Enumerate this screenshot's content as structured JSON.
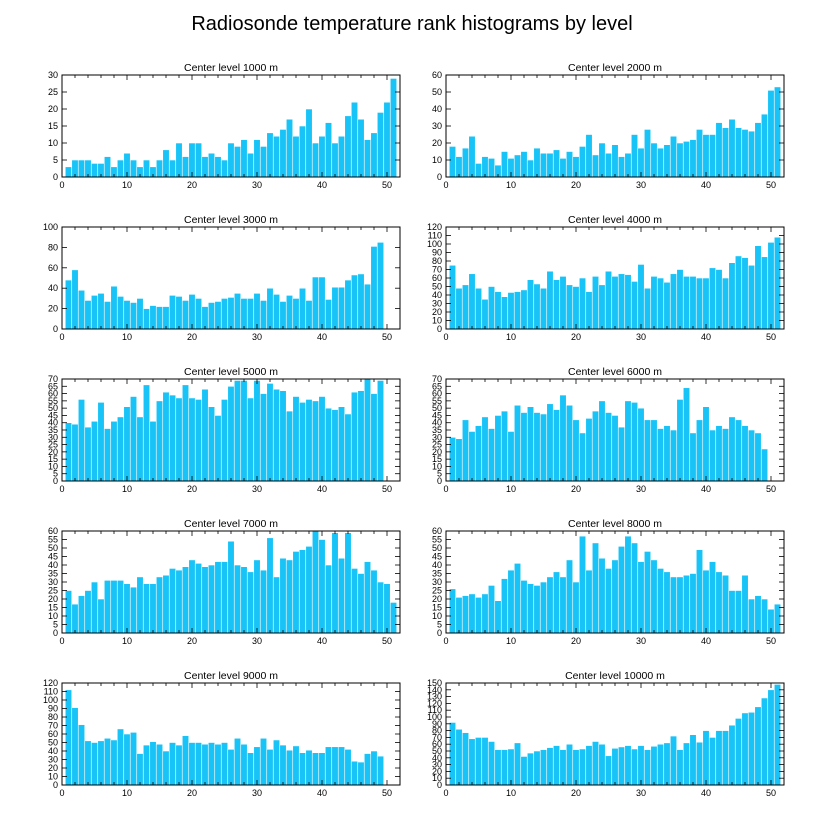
{
  "title": "Radiosonde temperature rank histograms by level",
  "colors": {
    "bar": "#17c3f7",
    "bar_edge": "#ffffff",
    "axis": "#000000"
  },
  "chart_data": [
    {
      "type": "bar",
      "title": "Center level 1000 m",
      "x": [
        1,
        2,
        3,
        4,
        5,
        6,
        7,
        8,
        9,
        10,
        11,
        12,
        13,
        14,
        15,
        16,
        17,
        18,
        19,
        20,
        21,
        22,
        23,
        24,
        25,
        26,
        27,
        28,
        29,
        30,
        31,
        32,
        33,
        34,
        35,
        36,
        37,
        38,
        39,
        40,
        41,
        42,
        43,
        44,
        45,
        46,
        47,
        48,
        49,
        50,
        51
      ],
      "values": [
        3,
        5,
        5,
        5,
        4,
        4,
        6,
        3,
        5,
        7,
        5,
        3,
        5,
        3,
        5,
        8,
        5,
        10,
        6,
        10,
        10,
        6,
        7,
        6,
        5,
        10,
        9,
        11,
        7,
        11,
        9,
        13,
        12,
        14,
        17,
        12,
        15,
        20,
        10,
        12,
        16,
        10,
        12,
        18,
        22,
        17,
        11,
        13,
        19,
        22,
        29
      ],
      "xlim": [
        0,
        52
      ],
      "ylim": [
        0,
        30
      ],
      "xticks": [
        0,
        10,
        20,
        30,
        40,
        50
      ],
      "yticks": [
        0,
        5,
        10,
        15,
        20,
        25,
        30
      ]
    },
    {
      "type": "bar",
      "title": "Center level 2000 m",
      "x": [
        1,
        2,
        3,
        4,
        5,
        6,
        7,
        8,
        9,
        10,
        11,
        12,
        13,
        14,
        15,
        16,
        17,
        18,
        19,
        20,
        21,
        22,
        23,
        24,
        25,
        26,
        27,
        28,
        29,
        30,
        31,
        32,
        33,
        34,
        35,
        36,
        37,
        38,
        39,
        40,
        41,
        42,
        43,
        44,
        45,
        46,
        47,
        48,
        49,
        50,
        51
      ],
      "values": [
        18,
        12,
        17,
        24,
        8,
        12,
        11,
        7,
        15,
        11,
        13,
        15,
        10,
        17,
        14,
        14,
        16,
        11,
        15,
        12,
        18,
        25,
        13,
        20,
        14,
        19,
        12,
        14,
        25,
        17,
        28,
        20,
        17,
        19,
        24,
        20,
        21,
        22,
        28,
        25,
        25,
        32,
        29,
        34,
        29,
        28,
        27,
        32,
        37,
        51,
        53
      ],
      "xlim": [
        0,
        52
      ],
      "ylim": [
        0,
        60
      ],
      "xticks": [
        0,
        10,
        20,
        30,
        40,
        50
      ],
      "yticks": [
        0,
        10,
        20,
        30,
        40,
        50,
        60
      ]
    },
    {
      "type": "bar",
      "title": "Center level 3000 m",
      "x": [
        1,
        2,
        3,
        4,
        5,
        6,
        7,
        8,
        9,
        10,
        11,
        12,
        13,
        14,
        15,
        16,
        17,
        18,
        19,
        20,
        21,
        22,
        23,
        24,
        25,
        26,
        27,
        28,
        29,
        30,
        31,
        32,
        33,
        34,
        35,
        36,
        37,
        38,
        39,
        40,
        41,
        42,
        43,
        44,
        45,
        46,
        47,
        48,
        49,
        50,
        51
      ],
      "values": [
        48,
        58,
        38,
        28,
        33,
        35,
        27,
        42,
        32,
        28,
        26,
        30,
        20,
        23,
        22,
        22,
        33,
        32,
        28,
        34,
        30,
        22,
        26,
        27,
        30,
        31,
        35,
        30,
        30,
        35,
        28,
        40,
        34,
        27,
        33,
        30,
        40,
        28,
        51,
        51,
        29,
        41,
        41,
        48,
        53,
        54,
        44,
        81,
        85,
        null,
        null
      ],
      "xlim": [
        0,
        52
      ],
      "ylim": [
        0,
        100
      ],
      "xticks": [
        0,
        10,
        20,
        30,
        40,
        50
      ],
      "yticks": [
        0,
        20,
        40,
        60,
        80,
        100
      ]
    },
    {
      "type": "bar",
      "title": "Center level 4000 m",
      "x": [
        1,
        2,
        3,
        4,
        5,
        6,
        7,
        8,
        9,
        10,
        11,
        12,
        13,
        14,
        15,
        16,
        17,
        18,
        19,
        20,
        21,
        22,
        23,
        24,
        25,
        26,
        27,
        28,
        29,
        30,
        31,
        32,
        33,
        34,
        35,
        36,
        37,
        38,
        39,
        40,
        41,
        42,
        43,
        44,
        45,
        46,
        47,
        48,
        49,
        50,
        51
      ],
      "values": [
        75,
        48,
        52,
        65,
        48,
        35,
        50,
        44,
        38,
        43,
        44,
        46,
        58,
        53,
        48,
        68,
        58,
        62,
        52,
        50,
        60,
        44,
        62,
        52,
        68,
        62,
        65,
        64,
        56,
        76,
        48,
        62,
        60,
        55,
        65,
        70,
        62,
        62,
        60,
        60,
        72,
        70,
        60,
        78,
        86,
        84,
        75,
        98,
        85,
        102,
        108
      ],
      "xlim": [
        0,
        52
      ],
      "ylim": [
        0,
        120
      ],
      "xticks": [
        0,
        10,
        20,
        30,
        40,
        50
      ],
      "yticks": [
        0,
        10,
        20,
        30,
        40,
        50,
        60,
        70,
        80,
        90,
        100,
        110,
        120
      ]
    },
    {
      "type": "bar",
      "title": "Center level 5000 m",
      "x": [
        1,
        2,
        3,
        4,
        5,
        6,
        7,
        8,
        9,
        10,
        11,
        12,
        13,
        14,
        15,
        16,
        17,
        18,
        19,
        20,
        21,
        22,
        23,
        24,
        25,
        26,
        27,
        28,
        29,
        30,
        31,
        32,
        33,
        34,
        35,
        36,
        37,
        38,
        39,
        40,
        41,
        42,
        43,
        44,
        45,
        46,
        47,
        48,
        49,
        50,
        51
      ],
      "values": [
        40,
        39,
        56,
        37,
        41,
        54,
        36,
        41,
        44,
        51,
        58,
        44,
        66,
        41,
        55,
        61,
        59,
        57,
        66,
        57,
        56,
        63,
        51,
        45,
        56,
        65,
        69,
        69,
        57,
        69,
        60,
        67,
        63,
        62,
        48,
        58,
        54,
        56,
        55,
        58,
        50,
        49,
        51,
        46,
        61,
        62,
        70,
        60,
        69,
        null,
        null
      ],
      "xlim": [
        0,
        52
      ],
      "ylim": [
        0,
        70
      ],
      "xticks": [
        0,
        10,
        20,
        30,
        40,
        50
      ],
      "yticks": [
        0,
        5,
        10,
        15,
        20,
        25,
        30,
        35,
        40,
        45,
        50,
        55,
        60,
        65,
        70
      ]
    },
    {
      "type": "bar",
      "title": "Center level 6000 m",
      "x": [
        1,
        2,
        3,
        4,
        5,
        6,
        7,
        8,
        9,
        10,
        11,
        12,
        13,
        14,
        15,
        16,
        17,
        18,
        19,
        20,
        21,
        22,
        23,
        24,
        25,
        26,
        27,
        28,
        29,
        30,
        31,
        32,
        33,
        34,
        35,
        36,
        37,
        38,
        39,
        40,
        41,
        42,
        43,
        44,
        45,
        46,
        47,
        48,
        49,
        50,
        51
      ],
      "values": [
        30,
        29,
        42,
        34,
        38,
        44,
        36,
        45,
        48,
        34,
        52,
        47,
        51,
        47,
        46,
        53,
        49,
        59,
        52,
        42,
        33,
        43,
        48,
        55,
        47,
        45,
        37,
        55,
        54,
        50,
        42,
        42,
        36,
        38,
        35,
        56,
        64,
        33,
        42,
        51,
        35,
        38,
        36,
        44,
        42,
        38,
        35,
        33,
        22,
        null,
        null
      ],
      "xlim": [
        0,
        52
      ],
      "ylim": [
        0,
        70
      ],
      "xticks": [
        0,
        10,
        20,
        30,
        40,
        50
      ],
      "yticks": [
        0,
        5,
        10,
        15,
        20,
        25,
        30,
        35,
        40,
        45,
        50,
        55,
        60,
        65,
        70
      ]
    },
    {
      "type": "bar",
      "title": "Center level 7000 m",
      "x": [
        1,
        2,
        3,
        4,
        5,
        6,
        7,
        8,
        9,
        10,
        11,
        12,
        13,
        14,
        15,
        16,
        17,
        18,
        19,
        20,
        21,
        22,
        23,
        24,
        25,
        26,
        27,
        28,
        29,
        30,
        31,
        32,
        33,
        34,
        35,
        36,
        37,
        38,
        39,
        40,
        41,
        42,
        43,
        44,
        45,
        46,
        47,
        48,
        49,
        50,
        51
      ],
      "values": [
        25,
        17,
        22,
        25,
        30,
        20,
        31,
        31,
        31,
        29,
        27,
        33,
        29,
        29,
        33,
        34,
        38,
        37,
        39,
        43,
        41,
        39,
        40,
        42,
        42,
        54,
        40,
        39,
        36,
        43,
        37,
        56,
        33,
        44,
        43,
        48,
        49,
        51,
        60,
        55,
        40,
        59,
        44,
        59,
        38,
        35,
        42,
        37,
        30,
        29,
        18
      ],
      "xlim": [
        0,
        52
      ],
      "ylim": [
        0,
        60
      ],
      "xticks": [
        0,
        10,
        20,
        30,
        40,
        50
      ],
      "yticks": [
        0,
        5,
        10,
        15,
        20,
        25,
        30,
        35,
        40,
        45,
        50,
        55,
        60
      ]
    },
    {
      "type": "bar",
      "title": "Center level 8000 m",
      "x": [
        1,
        2,
        3,
        4,
        5,
        6,
        7,
        8,
        9,
        10,
        11,
        12,
        13,
        14,
        15,
        16,
        17,
        18,
        19,
        20,
        21,
        22,
        23,
        24,
        25,
        26,
        27,
        28,
        29,
        30,
        31,
        32,
        33,
        34,
        35,
        36,
        37,
        38,
        39,
        40,
        41,
        42,
        43,
        44,
        45,
        46,
        47,
        48,
        49,
        50,
        51
      ],
      "values": [
        26,
        21,
        22,
        23,
        21,
        23,
        28,
        19,
        32,
        37,
        41,
        31,
        29,
        28,
        30,
        33,
        36,
        33,
        43,
        30,
        57,
        37,
        53,
        44,
        38,
        43,
        51,
        57,
        53,
        42,
        48,
        43,
        38,
        36,
        33,
        33,
        34,
        35,
        49,
        37,
        42,
        36,
        34,
        25,
        25,
        34,
        20,
        22,
        20,
        14,
        17
      ],
      "xlim": [
        0,
        52
      ],
      "ylim": [
        0,
        60
      ],
      "xticks": [
        0,
        10,
        20,
        30,
        40,
        50
      ],
      "yticks": [
        0,
        5,
        10,
        15,
        20,
        25,
        30,
        35,
        40,
        45,
        50,
        55,
        60
      ]
    },
    {
      "type": "bar",
      "title": "Center level 9000 m",
      "x": [
        1,
        2,
        3,
        4,
        5,
        6,
        7,
        8,
        9,
        10,
        11,
        12,
        13,
        14,
        15,
        16,
        17,
        18,
        19,
        20,
        21,
        22,
        23,
        24,
        25,
        26,
        27,
        28,
        29,
        30,
        31,
        32,
        33,
        34,
        35,
        36,
        37,
        38,
        39,
        40,
        41,
        42,
        43,
        44,
        45,
        46,
        47,
        48,
        49,
        50,
        51
      ],
      "values": [
        112,
        91,
        71,
        52,
        50,
        52,
        55,
        53,
        66,
        60,
        62,
        37,
        47,
        51,
        48,
        40,
        50,
        47,
        58,
        50,
        50,
        48,
        50,
        48,
        50,
        42,
        55,
        48,
        38,
        45,
        55,
        42,
        53,
        47,
        41,
        46,
        38,
        41,
        38,
        38,
        45,
        45,
        45,
        42,
        28,
        27,
        37,
        40,
        34,
        null,
        null
      ],
      "xlim": [
        0,
        52
      ],
      "ylim": [
        0,
        120
      ],
      "xticks": [
        0,
        10,
        20,
        30,
        40,
        50
      ],
      "yticks": [
        0,
        10,
        20,
        30,
        40,
        50,
        60,
        70,
        80,
        90,
        100,
        110,
        120
      ]
    },
    {
      "type": "bar",
      "title": "Center level 10000 m",
      "x": [
        1,
        2,
        3,
        4,
        5,
        6,
        7,
        8,
        9,
        10,
        11,
        12,
        13,
        14,
        15,
        16,
        17,
        18,
        19,
        20,
        21,
        22,
        23,
        24,
        25,
        26,
        27,
        28,
        29,
        30,
        31,
        32,
        33,
        34,
        35,
        36,
        37,
        38,
        39,
        40,
        41,
        42,
        43,
        44,
        45,
        46,
        47,
        48,
        49,
        50,
        51
      ],
      "values": [
        92,
        82,
        77,
        68,
        70,
        70,
        64,
        52,
        52,
        53,
        62,
        42,
        47,
        50,
        52,
        55,
        58,
        52,
        60,
        52,
        53,
        58,
        64,
        60,
        43,
        54,
        56,
        58,
        53,
        58,
        52,
        57,
        60,
        62,
        72,
        52,
        62,
        74,
        63,
        80,
        70,
        80,
        80,
        88,
        98,
        106,
        107,
        115,
        128,
        140,
        148
      ],
      "xlim": [
        0,
        52
      ],
      "ylim": [
        0,
        150
      ],
      "xticks": [
        0,
        10,
        20,
        30,
        40,
        50
      ],
      "yticks": [
        0,
        10,
        20,
        30,
        40,
        50,
        60,
        70,
        80,
        90,
        100,
        110,
        120,
        130,
        140,
        150
      ]
    }
  ]
}
